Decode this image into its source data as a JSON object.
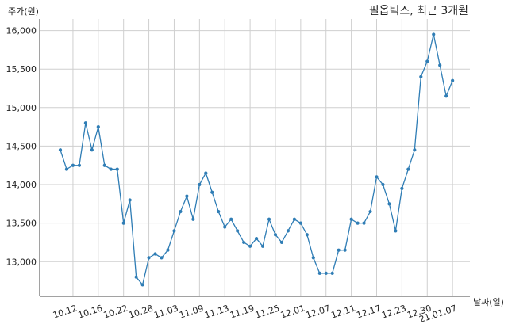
{
  "chart_data": {
    "type": "line",
    "title": "필옵틱스, 최근 3개월",
    "ylabel": "주가(원)",
    "xlabel": "날짜(일)",
    "ylim": [
      12550,
      16150
    ],
    "yticks": [
      13000,
      13500,
      14000,
      14500,
      15000,
      15500,
      16000
    ],
    "ytick_labels": [
      "13,000",
      "13,500",
      "14,000",
      "14,500",
      "15,000",
      "15,500",
      "16,000"
    ],
    "xtick_labels": [
      "10.12",
      "10.16",
      "10.22",
      "10.28",
      "11.03",
      "11.09",
      "11.13",
      "11.19",
      "11.25",
      "12.01",
      "12.07",
      "12.11",
      "12.17",
      "12.23",
      "12.30",
      "21.01.07"
    ],
    "xtick_index": [
      2,
      6,
      10,
      14,
      18,
      22,
      26,
      30,
      34,
      38,
      42,
      46,
      50,
      54,
      58,
      62
    ],
    "grid": true,
    "color": "#2f7db5",
    "series": [
      {
        "values": [
          14450,
          14200,
          14250,
          14250,
          14800,
          14450,
          14750,
          14250,
          14200,
          14200,
          13500,
          13800,
          12800,
          12700,
          13050,
          13100,
          13050,
          13150,
          13400,
          13650,
          13850,
          13550,
          14000,
          14150,
          13900,
          13650,
          13450,
          13550,
          13400,
          13250,
          13200,
          13300,
          13200,
          13550,
          13350,
          13250,
          13400,
          13550,
          13500,
          13350,
          13050,
          12850,
          12850,
          12850,
          13150,
          13150,
          13550,
          13500,
          13500,
          13650,
          14100,
          14000,
          13750,
          13400,
          13950,
          14200,
          14450,
          15400,
          15600,
          15950,
          15550,
          15150,
          15350
        ]
      }
    ]
  }
}
